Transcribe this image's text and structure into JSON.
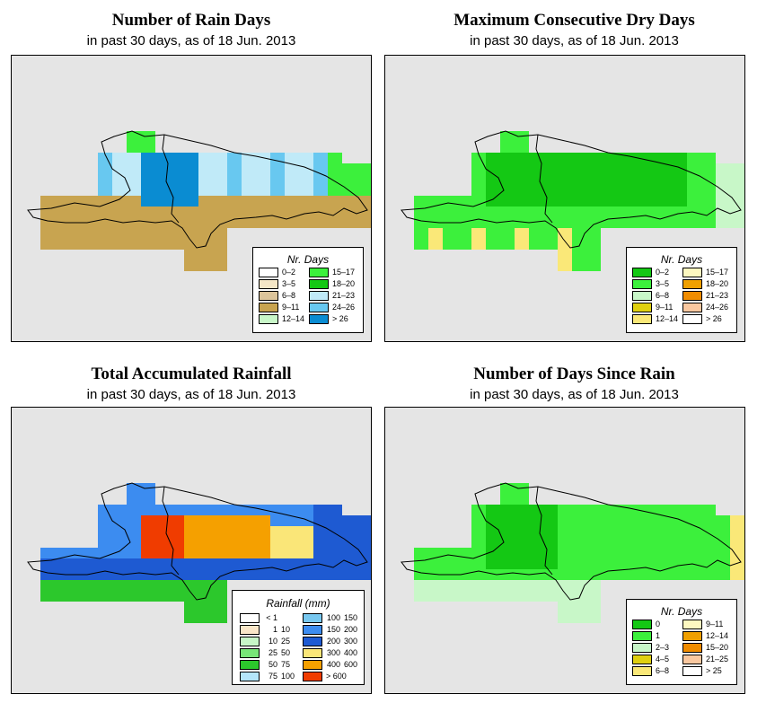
{
  "region": "Hispaniola",
  "panels": [
    {
      "id": "rain_days",
      "title": "Number of Rain Days",
      "subtitle": "in past 30 days, as of  18 Jun. 2013",
      "legend": {
        "title": "Nr. Days",
        "items": [
          {
            "label": "0–2",
            "color": "#ffffff"
          },
          {
            "label": "3–5",
            "color": "#f4e6c6"
          },
          {
            "label": "6–8",
            "color": "#dcc49a"
          },
          {
            "label": "9–11",
            "color": "#c8a450"
          },
          {
            "label": "12–14",
            "color": "#c8f7c8"
          },
          {
            "label": "15–17",
            "color": "#3cf03c"
          },
          {
            "label": "18–20",
            "color": "#14c814"
          },
          {
            "label": "21–23",
            "color": "#c0eaf8"
          },
          {
            "label": "24–26",
            "color": "#68c8f0"
          },
          {
            "label": "> 26",
            "color": "#0a8cd2"
          }
        ]
      }
    },
    {
      "id": "max_dry",
      "title": "Maximum Consecutive Dry Days",
      "subtitle": "in past 30 days, as of  18 Jun. 2013",
      "legend": {
        "title": "Nr. Days",
        "items": [
          {
            "label": "0–2",
            "color": "#14c814"
          },
          {
            "label": "3–5",
            "color": "#3cf03c"
          },
          {
            "label": "6–8",
            "color": "#c8f7c8"
          },
          {
            "label": "9–11",
            "color": "#e0d010"
          },
          {
            "label": "12–14",
            "color": "#fae878"
          },
          {
            "label": "15–17",
            "color": "#fdf8c0"
          },
          {
            "label": "18–20",
            "color": "#f0a000"
          },
          {
            "label": "21–23",
            "color": "#f08c00"
          },
          {
            "label": "24–26",
            "color": "#fac8a0"
          },
          {
            "label": "> 26",
            "color": "#ffffff"
          }
        ]
      }
    },
    {
      "id": "total_rain",
      "title": "Total Accumulated Rainfall",
      "subtitle": "in past 30 days, as of  18 Jun. 2013",
      "legend": {
        "title": "Rainfall (mm)",
        "items": [
          {
            "from": "< 1",
            "to": "",
            "color": "#ffffff"
          },
          {
            "from": "1",
            "to": "10",
            "color": "#fae6c8"
          },
          {
            "from": "10",
            "to": "25",
            "color": "#c8f7c8"
          },
          {
            "from": "25",
            "to": "50",
            "color": "#78e678"
          },
          {
            "from": "50",
            "to": "75",
            "color": "#2cc82c"
          },
          {
            "from": "75",
            "to": "100",
            "color": "#b4e6fa"
          },
          {
            "from": "100",
            "to": "150",
            "color": "#78c8f0"
          },
          {
            "from": "150",
            "to": "200",
            "color": "#3c8cf0"
          },
          {
            "from": "200",
            "to": "300",
            "color": "#1e5ad2"
          },
          {
            "from": "300",
            "to": "400",
            "color": "#fae678"
          },
          {
            "from": "400",
            "to": "600",
            "color": "#f5a000"
          },
          {
            "from": "> 600",
            "to": "",
            "color": "#f03c00"
          }
        ]
      }
    },
    {
      "id": "days_since",
      "title": "Number of Days Since Rain",
      "subtitle": "in past 30 days, as of  18 Jun. 2013",
      "legend": {
        "title": "Nr. Days",
        "items": [
          {
            "label": "0",
            "color": "#14c814"
          },
          {
            "label": "1",
            "color": "#3cf03c"
          },
          {
            "label": "2–3",
            "color": "#c8f7c8"
          },
          {
            "label": "4–5",
            "color": "#e0d010"
          },
          {
            "label": "6–8",
            "color": "#fae878"
          },
          {
            "label": "9–11",
            "color": "#fdf8c0"
          },
          {
            "label": "12–14",
            "color": "#f0a000"
          },
          {
            "label": "15–20",
            "color": "#f08c00"
          },
          {
            "label": "21–25",
            "color": "#fac8a0"
          },
          {
            "label": "> 25",
            "color": "#ffffff"
          }
        ]
      }
    }
  ]
}
